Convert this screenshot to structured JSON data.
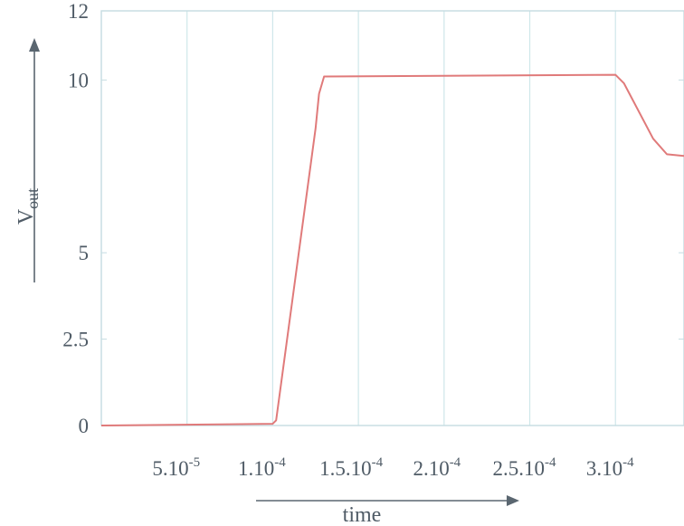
{
  "chart_data": {
    "type": "line",
    "xlabel": "time",
    "ylabel": "V",
    "ylabel_sub": "out",
    "xlim": [
      0,
      0.00034
    ],
    "ylim": [
      0,
      12
    ],
    "y_ticks": [
      {
        "value": 0,
        "label": "0"
      },
      {
        "value": 2.5,
        "label": "2.5"
      },
      {
        "value": 5,
        "label": "5"
      },
      {
        "value": 10,
        "label": "10"
      },
      {
        "value": 12,
        "label": "12"
      }
    ],
    "x_ticks": [
      {
        "value": 5e-05,
        "mant": "5.10",
        "exp": "-5"
      },
      {
        "value": 0.0001,
        "mant": "1.10",
        "exp": "-4"
      },
      {
        "value": 0.00015,
        "mant": "1.5.10",
        "exp": "-4"
      },
      {
        "value": 0.0002,
        "mant": "2.10",
        "exp": "-4"
      },
      {
        "value": 0.00025,
        "mant": "2.5.10",
        "exp": "-4"
      },
      {
        "value": 0.0003,
        "mant": "3.10",
        "exp": "-4"
      }
    ],
    "grid": true,
    "series": [
      {
        "color": "#e07a7a",
        "x": [
          0,
          0.0001,
          0.000102,
          0.000125,
          0.000127,
          0.00013,
          0.0003,
          0.000305,
          0.000322,
          0.00033,
          0.00034
        ],
        "y": [
          0,
          0.05,
          0.15,
          8.6,
          9.6,
          10.1,
          10.15,
          9.9,
          8.3,
          7.85,
          7.8
        ]
      }
    ],
    "colors": {
      "grid": "#cfe7ea",
      "frame": "#c5dce2",
      "text": "#4f5b66",
      "arrow": "#5a6670"
    }
  }
}
